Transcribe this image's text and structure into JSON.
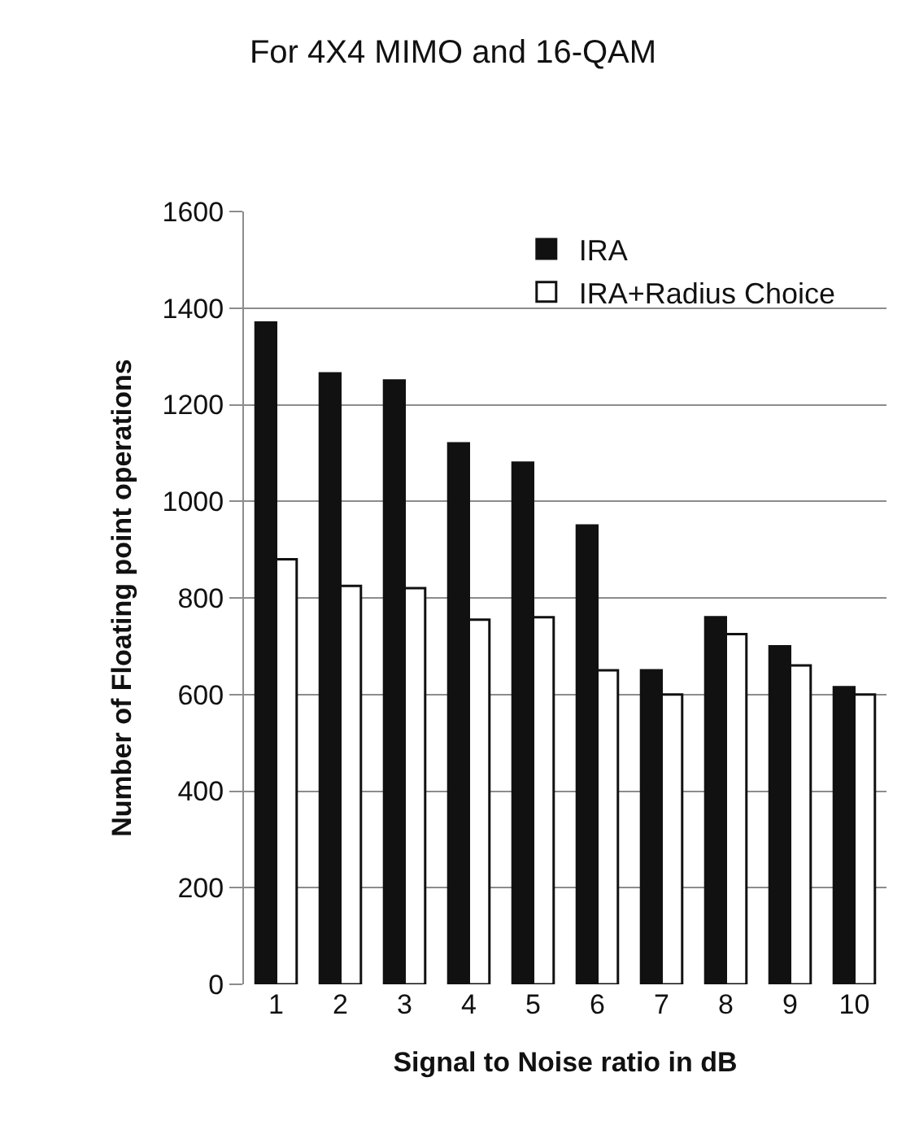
{
  "chart_data": {
    "type": "bar",
    "title": "For 4X4 MIMO and 16-QAM",
    "xlabel": "Signal to Noise ratio in dB",
    "ylabel": "Number of Floating point operations",
    "categories": [
      "1",
      "2",
      "3",
      "4",
      "5",
      "6",
      "7",
      "8",
      "9",
      "10"
    ],
    "series": [
      {
        "name": "IRA",
        "color": "#111111",
        "values": [
          1370,
          1265,
          1250,
          1120,
          1080,
          950,
          650,
          760,
          700,
          615
        ]
      },
      {
        "name": "IRA+Radius Choice",
        "color": "#ffffff",
        "values": [
          880,
          825,
          820,
          755,
          760,
          650,
          600,
          725,
          660,
          600
        ]
      }
    ],
    "ylim": [
      0,
      1600
    ],
    "yticks": [
      0,
      200,
      400,
      600,
      800,
      1000,
      1200,
      1400,
      1600
    ],
    "grid": "y",
    "legend": "top"
  }
}
